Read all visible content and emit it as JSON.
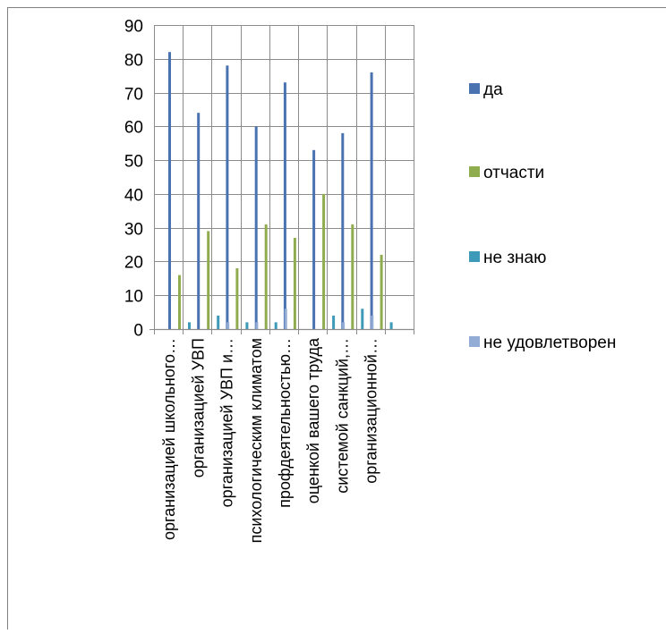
{
  "chart_data": {
    "type": "bar",
    "title": "",
    "xlabel": "",
    "ylabel": "",
    "ylim": [
      0,
      90
    ],
    "yticks": [
      0,
      10,
      20,
      30,
      40,
      50,
      60,
      70,
      80,
      90
    ],
    "grid": true,
    "legend_position": "right",
    "categories": [
      "организацией школьного…",
      "организацией УВП",
      "организацией УВП и…",
      "психологическим климатом",
      "профдеятельностью…",
      "оценкой вашего труда",
      "системой санкций,…",
      "организационной…",
      ""
    ],
    "series": [
      {
        "name": "да",
        "color": "#4a72b0",
        "values": [
          82,
          64,
          78,
          60,
          73,
          53,
          58,
          76,
          null
        ]
      },
      {
        "name": "отчасти",
        "color": "#8fad4f",
        "values": [
          16,
          29,
          18,
          31,
          27,
          40,
          31,
          22,
          null
        ]
      },
      {
        "name": "не знаю",
        "color": "#3d9ab8",
        "values": [
          2,
          4,
          2,
          2,
          0,
          4,
          6,
          2,
          null
        ]
      },
      {
        "name": "не удовлетворен",
        "color": "#93acd6",
        "values": [
          0,
          2,
          2,
          6,
          0,
          2,
          4,
          0,
          null
        ]
      }
    ]
  }
}
